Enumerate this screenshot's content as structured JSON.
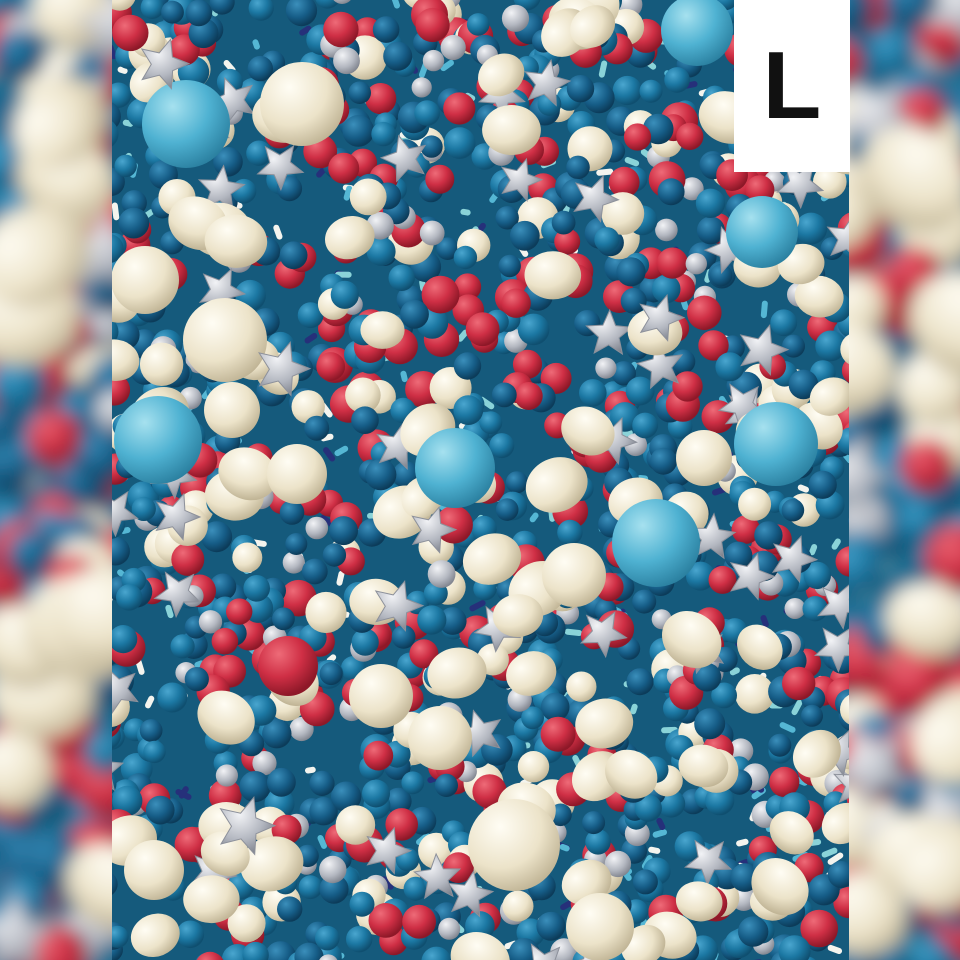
{
  "photo": {
    "subject": "sprinkle-mix",
    "size_label": "L"
  },
  "palette": {
    "teal_blue": "#1f7fa8",
    "deep_blue": "#175f88",
    "sky_blue": "#55b7d4",
    "red": "#d4364a",
    "cream": "#efe8d4",
    "silver": "#b9bcc4",
    "navy": "#26307a",
    "mint": "#8ad3d8",
    "white": "#f4f4ee",
    "label_bg": "#ffffff",
    "label_text": "#111111"
  }
}
